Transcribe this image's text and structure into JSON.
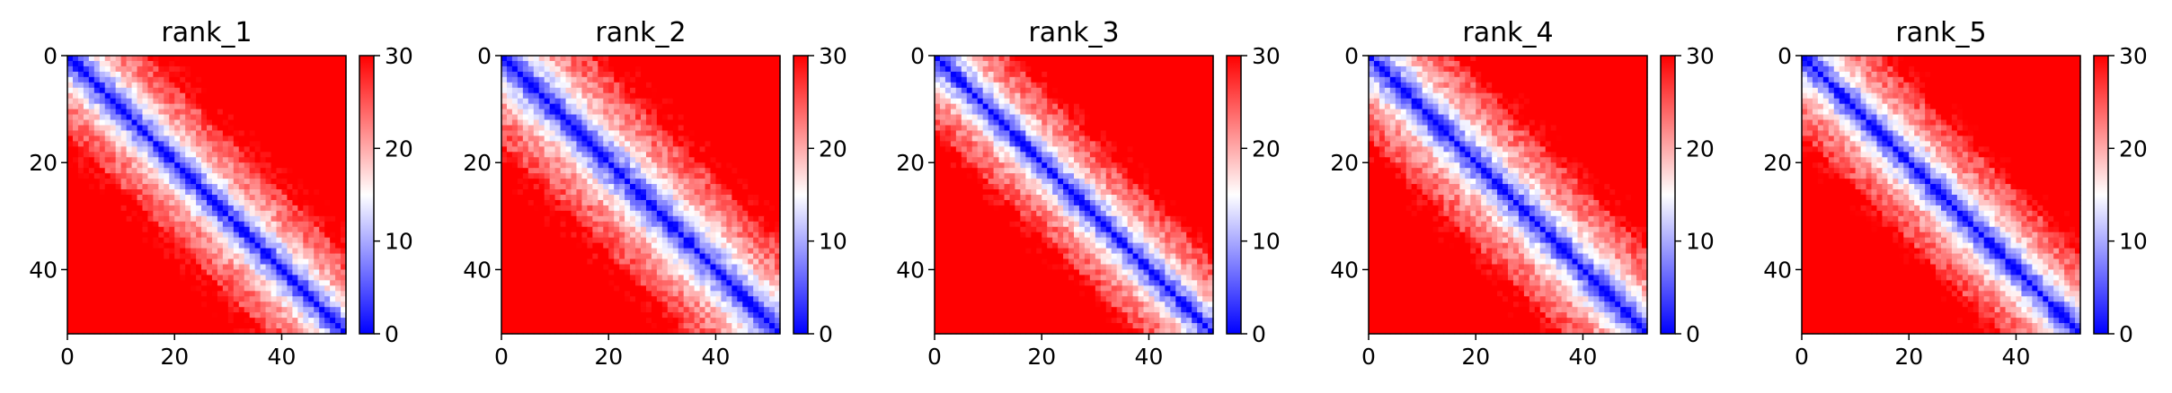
{
  "chart_data": [
    {
      "type": "heatmap",
      "title": "rank_1",
      "matrix_size": 52,
      "value_range": [
        0,
        30
      ],
      "colormap": "bwr",
      "colors": {
        "low": "#0000ff",
        "mid": "#ffffff",
        "high": "#ff0000"
      },
      "x_ticks": [
        "0",
        "20",
        "40"
      ],
      "y_ticks": [
        "0",
        "20",
        "40"
      ],
      "colorbar_ticks": [
        "0",
        "10",
        "20",
        "30"
      ],
      "pattern": {
        "band_width": 7.0,
        "saturation": 10,
        "seed": 11
      }
    },
    {
      "type": "heatmap",
      "title": "rank_2",
      "matrix_size": 52,
      "value_range": [
        0,
        30
      ],
      "colormap": "bwr",
      "colors": {
        "low": "#0000ff",
        "mid": "#ffffff",
        "high": "#ff0000"
      },
      "x_ticks": [
        "0",
        "20",
        "40"
      ],
      "y_ticks": [
        "0",
        "20",
        "40"
      ],
      "colorbar_ticks": [
        "0",
        "10",
        "20",
        "30"
      ],
      "pattern": {
        "band_width": 8.0,
        "saturation": 9,
        "seed": 23
      }
    },
    {
      "type": "heatmap",
      "title": "rank_3",
      "matrix_size": 52,
      "value_range": [
        0,
        30
      ],
      "colormap": "bwr",
      "colors": {
        "low": "#0000ff",
        "mid": "#ffffff",
        "high": "#ff0000"
      },
      "x_ticks": [
        "0",
        "20",
        "40"
      ],
      "y_ticks": [
        "0",
        "20",
        "40"
      ],
      "colorbar_ticks": [
        "0",
        "10",
        "20",
        "30"
      ],
      "pattern": {
        "band_width": 6.5,
        "saturation": 11,
        "seed": 37
      }
    },
    {
      "type": "heatmap",
      "title": "rank_4",
      "matrix_size": 52,
      "value_range": [
        0,
        30
      ],
      "colormap": "bwr",
      "colors": {
        "low": "#0000ff",
        "mid": "#ffffff",
        "high": "#ff0000"
      },
      "x_ticks": [
        "0",
        "20",
        "40"
      ],
      "y_ticks": [
        "0",
        "20",
        "40"
      ],
      "colorbar_ticks": [
        "0",
        "10",
        "20",
        "30"
      ],
      "pattern": {
        "band_width": 7.5,
        "saturation": 10,
        "seed": 41
      }
    },
    {
      "type": "heatmap",
      "title": "rank_5",
      "matrix_size": 52,
      "value_range": [
        0,
        30
      ],
      "colormap": "bwr",
      "colors": {
        "low": "#0000ff",
        "mid": "#ffffff",
        "high": "#ff0000"
      },
      "x_ticks": [
        "0",
        "20",
        "40"
      ],
      "y_ticks": [
        "0",
        "20",
        "40"
      ],
      "colorbar_ticks": [
        "0",
        "10",
        "20",
        "30"
      ],
      "pattern": {
        "band_width": 7.0,
        "saturation": 11,
        "seed": 53
      }
    }
  ]
}
